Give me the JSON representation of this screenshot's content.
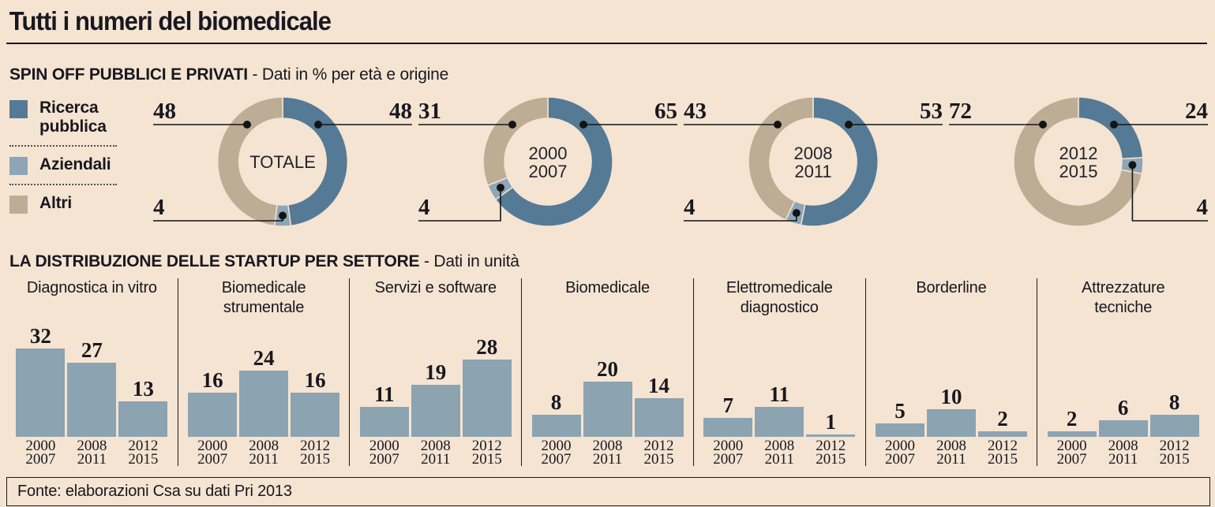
{
  "header": {
    "title": "Tutti i numeri del biomedicale"
  },
  "spin_off": {
    "heading": "SPIN OFF PUBBLICI E PRIVATI",
    "heading_note": "- Dati in % per età e origine",
    "legend": [
      {
        "label": "Ricerca pubblica",
        "color": "#557a95"
      },
      {
        "label": "Aziendali",
        "color": "#8da5b7"
      },
      {
        "label": "Altri",
        "color": "#bead95"
      }
    ]
  },
  "startup": {
    "heading": "LA  DISTRIBUZIONE DELLE STARTUP PER SETTORE",
    "heading_note": "- Dati in unità"
  },
  "footer": {
    "source": "Fonte: elaborazioni Csa su dati Pri 2013"
  },
  "colors": {
    "background": "#f5e4d2",
    "ricerca_pubblica": "#557a95",
    "aziendali": "#8da5b7",
    "altri": "#bead95",
    "bar_fill": "#8ca3b2",
    "text": "#18181f",
    "line": "#141414"
  },
  "chart_data": [
    {
      "type": "pie",
      "subtype": "donut",
      "unit": "%",
      "center_label_lines": [
        "TOTALE"
      ],
      "slices": [
        {
          "label": "Ricerca pubblica",
          "value": 48
        },
        {
          "label": "Aziendali",
          "value": 4
        },
        {
          "label": "Altri",
          "value": 48
        }
      ],
      "callouts": [
        {
          "slice": "Altri",
          "side": "top-left"
        },
        {
          "slice": "Ricerca pubblica",
          "side": "top-right"
        },
        {
          "slice": "Aziendali",
          "side": "bottom-left"
        }
      ]
    },
    {
      "type": "pie",
      "subtype": "donut",
      "unit": "%",
      "center_label_lines": [
        "2000",
        "2007"
      ],
      "slices": [
        {
          "label": "Ricerca pubblica",
          "value": 65
        },
        {
          "label": "Aziendali",
          "value": 4
        },
        {
          "label": "Altri",
          "value": 31
        }
      ],
      "callouts": [
        {
          "slice": "Altri",
          "side": "top-left"
        },
        {
          "slice": "Ricerca pubblica",
          "side": "top-right"
        },
        {
          "slice": "Aziendali",
          "side": "bottom-left"
        }
      ]
    },
    {
      "type": "pie",
      "subtype": "donut",
      "unit": "%",
      "center_label_lines": [
        "2008",
        "2011"
      ],
      "slices": [
        {
          "label": "Ricerca pubblica",
          "value": 53
        },
        {
          "label": "Aziendali",
          "value": 4
        },
        {
          "label": "Altri",
          "value": 43
        }
      ],
      "callouts": [
        {
          "slice": "Altri",
          "side": "top-left"
        },
        {
          "slice": "Ricerca pubblica",
          "side": "top-right"
        },
        {
          "slice": "Aziendali",
          "side": "bottom-left"
        }
      ]
    },
    {
      "type": "pie",
      "subtype": "donut",
      "unit": "%",
      "center_label_lines": [
        "2012",
        "2015"
      ],
      "slices": [
        {
          "label": "Ricerca pubblica",
          "value": 24
        },
        {
          "label": "Aziendali",
          "value": 4
        },
        {
          "label": "Altri",
          "value": 72
        }
      ],
      "callouts": [
        {
          "slice": "Altri",
          "side": "top-left"
        },
        {
          "slice": "Ricerca pubblica",
          "side": "top-right"
        },
        {
          "slice": "Aziendali",
          "side": "bottom-right"
        }
      ]
    },
    {
      "type": "bar",
      "title": "Diagnostica in vitro",
      "unit": "unità",
      "categories": [
        [
          "2000",
          "2007"
        ],
        [
          "2008",
          "2011"
        ],
        [
          "2012",
          "2015"
        ]
      ],
      "values": [
        32,
        27,
        13
      ]
    },
    {
      "type": "bar",
      "title": "Biomedicale strumentale",
      "unit": "unità",
      "categories": [
        [
          "2000",
          "2007"
        ],
        [
          "2008",
          "2011"
        ],
        [
          "2012",
          "2015"
        ]
      ],
      "values": [
        16,
        24,
        16
      ]
    },
    {
      "type": "bar",
      "title": "Servizi e software",
      "unit": "unità",
      "categories": [
        [
          "2000",
          "2007"
        ],
        [
          "2008",
          "2011"
        ],
        [
          "2012",
          "2015"
        ]
      ],
      "values": [
        11,
        19,
        28
      ]
    },
    {
      "type": "bar",
      "title": "Biomedicale",
      "unit": "unità",
      "categories": [
        [
          "2000",
          "2007"
        ],
        [
          "2008",
          "2011"
        ],
        [
          "2012",
          "2015"
        ]
      ],
      "values": [
        8,
        20,
        14
      ]
    },
    {
      "type": "bar",
      "title": "Elettromedicale diagnostico",
      "unit": "unità",
      "categories": [
        [
          "2000",
          "2007"
        ],
        [
          "2008",
          "2011"
        ],
        [
          "2012",
          "2015"
        ]
      ],
      "values": [
        7,
        11,
        1
      ]
    },
    {
      "type": "bar",
      "title": "Borderline",
      "unit": "unità",
      "categories": [
        [
          "2000",
          "2007"
        ],
        [
          "2008",
          "2011"
        ],
        [
          "2012",
          "2015"
        ]
      ],
      "values": [
        5,
        10,
        2
      ]
    },
    {
      "type": "bar",
      "title": "Attrezzature tecniche",
      "unit": "unità",
      "categories": [
        [
          "2000",
          "2007"
        ],
        [
          "2008",
          "2011"
        ],
        [
          "2012",
          "2015"
        ]
      ],
      "values": [
        2,
        6,
        8
      ]
    }
  ]
}
